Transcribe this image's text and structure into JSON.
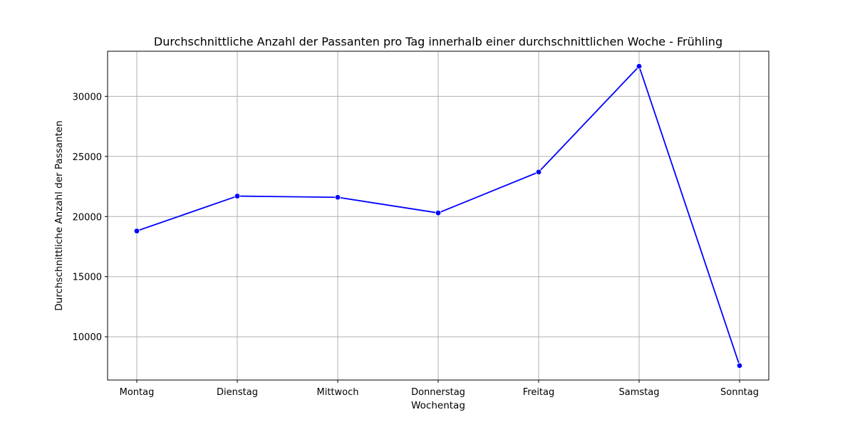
{
  "chart_data": {
    "type": "line",
    "title": "Durchschnittliche Anzahl der Passanten pro Tag innerhalb einer durchschnittlichen Woche - Frühling",
    "xlabel": "Wochentag",
    "ylabel": "Durchschnittliche Anzahl der Passanten",
    "categories": [
      "Montag",
      "Dienstag",
      "Mittwoch",
      "Donnerstag",
      "Freitag",
      "Samstag",
      "Sonntag"
    ],
    "series": [
      {
        "values": [
          18800,
          21700,
          21600,
          20300,
          23700,
          32500,
          7600
        ],
        "color": "#0000ff"
      }
    ],
    "yticks": [
      10000,
      15000,
      20000,
      25000,
      30000
    ],
    "ylim": [
      6400,
      33750
    ],
    "grid": true,
    "marker": "circle"
  }
}
